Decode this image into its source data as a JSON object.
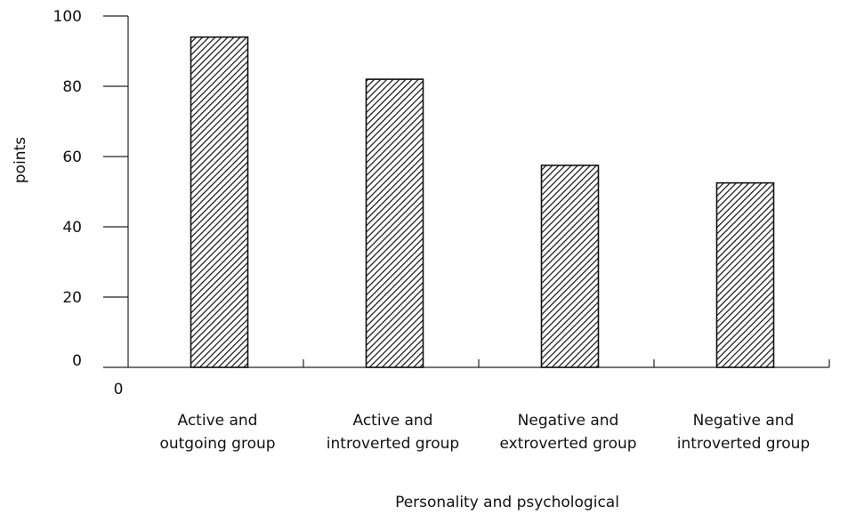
{
  "chart_data": {
    "type": "bar",
    "categories": [
      [
        "Active and",
        "outgoing group"
      ],
      [
        "Active and",
        "introverted group"
      ],
      [
        "Negative and",
        "extroverted group"
      ],
      [
        "Negative and",
        "introverted group"
      ]
    ],
    "values": [
      94,
      82,
      57.5,
      52.5
    ],
    "xlabel": "Personality and psychological",
    "ylabel": "points",
    "ylim": [
      0,
      100
    ],
    "yticks": [
      "0",
      "20",
      "40",
      "60",
      "80",
      "100"
    ],
    "origin_label": "0",
    "grid": false,
    "bar_fill": "diagonal-hatch",
    "colors": {
      "bar_stroke": "#111111",
      "hatch": "#111111",
      "axis": "#222222"
    }
  }
}
